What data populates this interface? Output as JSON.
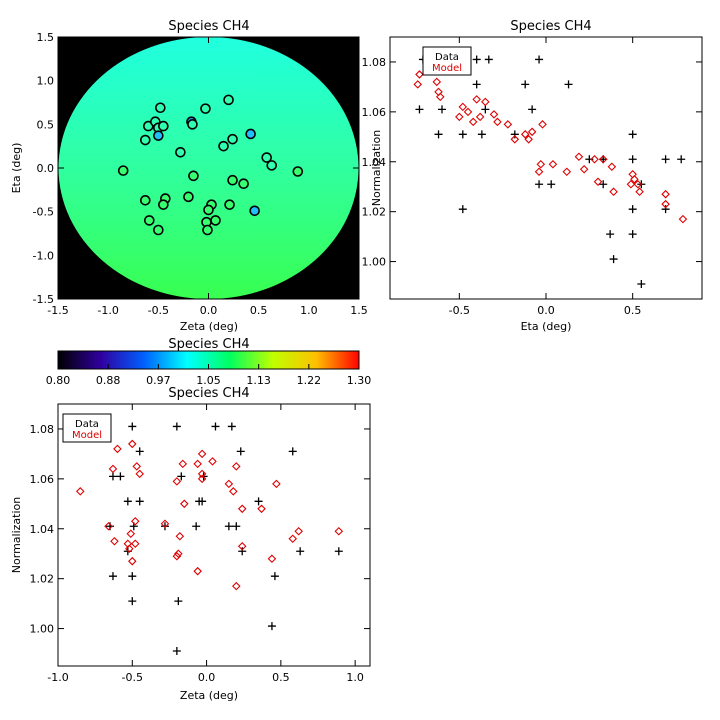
{
  "chart_data": [
    {
      "type": "scatter",
      "title": "Species CH4",
      "xlabel": "Zeta (deg)",
      "ylabel": "Eta (deg)",
      "xlim": [
        -1.5,
        1.5
      ],
      "ylim": [
        -1.5,
        1.5
      ],
      "xticks": [
        "-1.5",
        "-1.0",
        "-0.5",
        "0.0",
        "0.5",
        "1.0",
        "1.5"
      ],
      "yticks": [
        "-1.5",
        "-1.0",
        "-0.5",
        "0.0",
        "0.5",
        "1.0",
        "1.5"
      ],
      "background": "#000000",
      "disk_gradient": {
        "top": "#20ffe0",
        "middle": "#30ffa0",
        "bottom": "#38ff50"
      },
      "points": [
        {
          "x": -0.48,
          "y": 0.69,
          "color": "#30ffb0"
        },
        {
          "x": -0.03,
          "y": 0.68,
          "color": "#30ffb0"
        },
        {
          "x": 0.2,
          "y": 0.78,
          "color": "#30ffb0"
        },
        {
          "x": -0.17,
          "y": 0.53,
          "color": "#20a0ff"
        },
        {
          "x": -0.16,
          "y": 0.5,
          "color": "#30ffb0"
        },
        {
          "x": -0.6,
          "y": 0.48,
          "color": "#30ffb0"
        },
        {
          "x": -0.53,
          "y": 0.53,
          "color": "#30ffb0"
        },
        {
          "x": -0.5,
          "y": 0.46,
          "color": "#30ffb0"
        },
        {
          "x": -0.45,
          "y": 0.48,
          "color": "#30ffb0"
        },
        {
          "x": 0.42,
          "y": 0.39,
          "color": "#20c0ff"
        },
        {
          "x": -0.5,
          "y": 0.37,
          "color": "#20c0ff"
        },
        {
          "x": -0.63,
          "y": 0.32,
          "color": "#30ffb0"
        },
        {
          "x": 0.24,
          "y": 0.33,
          "color": "#30ffb0"
        },
        {
          "x": 0.15,
          "y": 0.25,
          "color": "#30ffb0"
        },
        {
          "x": -0.28,
          "y": 0.18,
          "color": "#30ffb0"
        },
        {
          "x": 0.58,
          "y": 0.12,
          "color": "#30ffb0"
        },
        {
          "x": 0.63,
          "y": 0.03,
          "color": "#30ffb0"
        },
        {
          "x": -0.85,
          "y": -0.03,
          "color": "#38ff70"
        },
        {
          "x": 0.89,
          "y": -0.04,
          "color": "#38ff70"
        },
        {
          "x": -0.15,
          "y": -0.09,
          "color": "#38ff70"
        },
        {
          "x": 0.24,
          "y": -0.14,
          "color": "#38ff70"
        },
        {
          "x": 0.35,
          "y": -0.18,
          "color": "#38ff70"
        },
        {
          "x": -0.2,
          "y": -0.33,
          "color": "#38ff70"
        },
        {
          "x": -0.63,
          "y": -0.37,
          "color": "#38ff70"
        },
        {
          "x": -0.43,
          "y": -0.35,
          "color": "#38ff70"
        },
        {
          "x": -0.45,
          "y": -0.42,
          "color": "#38ff70"
        },
        {
          "x": 0.03,
          "y": -0.42,
          "color": "#38ff70"
        },
        {
          "x": 0.21,
          "y": -0.42,
          "color": "#38ff70"
        },
        {
          "x": 0.0,
          "y": -0.48,
          "color": "#38ff70"
        },
        {
          "x": 0.46,
          "y": -0.49,
          "color": "#20c0ff"
        },
        {
          "x": 0.07,
          "y": -0.6,
          "color": "#38ff70"
        },
        {
          "x": -0.59,
          "y": -0.6,
          "color": "#38ff70"
        },
        {
          "x": -0.02,
          "y": -0.62,
          "color": "#38ff70"
        },
        {
          "x": -0.5,
          "y": -0.71,
          "color": "#38ff70"
        },
        {
          "x": -0.01,
          "y": -0.71,
          "color": "#38ff70"
        }
      ]
    },
    {
      "type": "scatter",
      "title": "Species CH4",
      "xlabel": "Eta (deg)",
      "ylabel": "Normalization",
      "xlim": [
        -0.9,
        0.9
      ],
      "ylim": [
        0.985,
        1.09
      ],
      "xticks": [
        "-0.5",
        "0.0",
        "0.5"
      ],
      "yticks": [
        "1.00",
        "1.02",
        "1.04",
        "1.06",
        "1.08"
      ],
      "legend": {
        "position": "top-left",
        "entries": [
          {
            "label": "Data",
            "color": "#000000"
          },
          {
            "label": "Model",
            "color": "#e00000"
          }
        ]
      },
      "series": [
        {
          "name": "Data",
          "marker": "plus",
          "color": "#000000",
          "points": [
            [
              -0.71,
              1.081
            ],
            [
              -0.6,
              1.081
            ],
            [
              -0.4,
              1.081
            ],
            [
              -0.33,
              1.081
            ],
            [
              -0.04,
              1.081
            ],
            [
              -0.4,
              1.071
            ],
            [
              -0.12,
              1.071
            ],
            [
              0.13,
              1.071
            ],
            [
              -0.73,
              1.061
            ],
            [
              -0.6,
              1.061
            ],
            [
              -0.35,
              1.061
            ],
            [
              -0.08,
              1.061
            ],
            [
              -0.62,
              1.051
            ],
            [
              -0.48,
              1.051
            ],
            [
              -0.37,
              1.051
            ],
            [
              -0.18,
              1.051
            ],
            [
              0.5,
              1.051
            ],
            [
              0.25,
              1.041
            ],
            [
              0.33,
              1.041
            ],
            [
              0.5,
              1.041
            ],
            [
              0.69,
              1.041
            ],
            [
              0.78,
              1.041
            ],
            [
              -0.04,
              1.031
            ],
            [
              0.03,
              1.031
            ],
            [
              0.33,
              1.031
            ],
            [
              0.55,
              1.031
            ],
            [
              -0.48,
              1.021
            ],
            [
              0.5,
              1.021
            ],
            [
              0.69,
              1.021
            ],
            [
              0.37,
              1.011
            ],
            [
              0.5,
              1.011
            ],
            [
              0.39,
              1.001
            ],
            [
              0.55,
              0.991
            ]
          ]
        },
        {
          "name": "Model",
          "marker": "diamond",
          "color": "#e00000",
          "points": [
            [
              -0.73,
              1.075
            ],
            [
              -0.74,
              1.071
            ],
            [
              -0.62,
              1.068
            ],
            [
              -0.61,
              1.066
            ],
            [
              -0.63,
              1.072
            ],
            [
              -0.48,
              1.062
            ],
            [
              -0.4,
              1.065
            ],
            [
              -0.35,
              1.064
            ],
            [
              -0.45,
              1.06
            ],
            [
              -0.38,
              1.058
            ],
            [
              -0.5,
              1.058
            ],
            [
              -0.42,
              1.056
            ],
            [
              -0.3,
              1.059
            ],
            [
              -0.28,
              1.056
            ],
            [
              -0.22,
              1.055
            ],
            [
              -0.12,
              1.051
            ],
            [
              -0.1,
              1.049
            ],
            [
              -0.18,
              1.049
            ],
            [
              -0.02,
              1.055
            ],
            [
              -0.08,
              1.052
            ],
            [
              -0.03,
              1.039
            ],
            [
              -0.04,
              1.036
            ],
            [
              0.04,
              1.039
            ],
            [
              0.12,
              1.036
            ],
            [
              0.19,
              1.042
            ],
            [
              0.22,
              1.037
            ],
            [
              0.28,
              1.041
            ],
            [
              0.33,
              1.041
            ],
            [
              0.38,
              1.038
            ],
            [
              0.3,
              1.032
            ],
            [
              0.5,
              1.035
            ],
            [
              0.51,
              1.033
            ],
            [
              0.49,
              1.031
            ],
            [
              0.53,
              1.031
            ],
            [
              0.54,
              1.028
            ],
            [
              0.39,
              1.028
            ],
            [
              0.69,
              1.027
            ],
            [
              0.69,
              1.023
            ],
            [
              0.79,
              1.017
            ]
          ]
        }
      ]
    },
    {
      "type": "colorbar",
      "title": "Species CH4",
      "range": [
        0.8,
        1.3
      ],
      "ticks": [
        "0.80",
        "0.88",
        "0.97",
        "1.05",
        "1.13",
        "1.22",
        "1.30"
      ],
      "colors": [
        "#000000",
        "#3000a0",
        "#0060ff",
        "#00ffff",
        "#00ff60",
        "#c0ff00",
        "#ffc000",
        "#ff0000"
      ]
    },
    {
      "type": "scatter",
      "title": "Species CH4",
      "xlabel": "Zeta (deg)",
      "ylabel": "Normalization",
      "xlim": [
        -1.0,
        1.1
      ],
      "ylim": [
        0.985,
        1.09
      ],
      "xticks": [
        "-1.0",
        "-0.5",
        "0.0",
        "0.5",
        "1.0"
      ],
      "yticks": [
        "1.00",
        "1.02",
        "1.04",
        "1.06",
        "1.08"
      ],
      "legend": {
        "position": "top-left",
        "entries": [
          {
            "label": "Data",
            "color": "#000000"
          },
          {
            "label": "Model",
            "color": "#e00000"
          }
        ]
      },
      "series": [
        {
          "name": "Data",
          "marker": "plus",
          "color": "#000000",
          "points": [
            [
              -0.5,
              1.081
            ],
            [
              -0.2,
              1.081
            ],
            [
              0.06,
              1.081
            ],
            [
              0.17,
              1.081
            ],
            [
              -0.45,
              1.071
            ],
            [
              0.23,
              1.071
            ],
            [
              0.58,
              1.071
            ],
            [
              -0.63,
              1.061
            ],
            [
              -0.58,
              1.061
            ],
            [
              -0.17,
              1.061
            ],
            [
              -0.02,
              1.061
            ],
            [
              -0.53,
              1.051
            ],
            [
              -0.45,
              1.051
            ],
            [
              -0.03,
              1.051
            ],
            [
              -0.05,
              1.051
            ],
            [
              0.35,
              1.051
            ],
            [
              -0.65,
              1.041
            ],
            [
              -0.49,
              1.041
            ],
            [
              -0.28,
              1.041
            ],
            [
              -0.07,
              1.041
            ],
            [
              0.15,
              1.041
            ],
            [
              0.2,
              1.041
            ],
            [
              -0.53,
              1.031
            ],
            [
              0.24,
              1.031
            ],
            [
              0.63,
              1.031
            ],
            [
              0.89,
              1.031
            ],
            [
              -0.63,
              1.021
            ],
            [
              -0.5,
              1.021
            ],
            [
              0.46,
              1.021
            ],
            [
              -0.5,
              1.011
            ],
            [
              -0.19,
              1.011
            ],
            [
              0.44,
              1.001
            ],
            [
              -0.2,
              0.991
            ]
          ]
        },
        {
          "name": "Model",
          "marker": "diamond",
          "color": "#e00000",
          "points": [
            [
              -0.6,
              1.072
            ],
            [
              -0.5,
              1.074
            ],
            [
              -0.63,
              1.064
            ],
            [
              -0.47,
              1.065
            ],
            [
              -0.45,
              1.062
            ],
            [
              -0.85,
              1.055
            ],
            [
              -0.03,
              1.07
            ],
            [
              -0.06,
              1.066
            ],
            [
              -0.16,
              1.066
            ],
            [
              0.04,
              1.067
            ],
            [
              0.2,
              1.065
            ],
            [
              -0.2,
              1.059
            ],
            [
              -0.15,
              1.05
            ],
            [
              -0.03,
              1.062
            ],
            [
              -0.03,
              1.06
            ],
            [
              0.15,
              1.058
            ],
            [
              0.47,
              1.058
            ],
            [
              0.18,
              1.055
            ],
            [
              0.24,
              1.048
            ],
            [
              0.37,
              1.048
            ],
            [
              -0.66,
              1.041
            ],
            [
              -0.28,
              1.042
            ],
            [
              -0.48,
              1.043
            ],
            [
              -0.51,
              1.038
            ],
            [
              -0.62,
              1.035
            ],
            [
              -0.53,
              1.034
            ],
            [
              -0.48,
              1.034
            ],
            [
              -0.18,
              1.037
            ],
            [
              -0.2,
              1.029
            ],
            [
              -0.19,
              1.03
            ],
            [
              -0.5,
              1.027
            ],
            [
              -0.06,
              1.023
            ],
            [
              0.2,
              1.017
            ],
            [
              0.24,
              1.033
            ],
            [
              0.44,
              1.028
            ],
            [
              0.58,
              1.036
            ],
            [
              0.62,
              1.039
            ],
            [
              0.89,
              1.039
            ],
            [
              -0.52,
              1.032
            ]
          ]
        }
      ]
    }
  ]
}
